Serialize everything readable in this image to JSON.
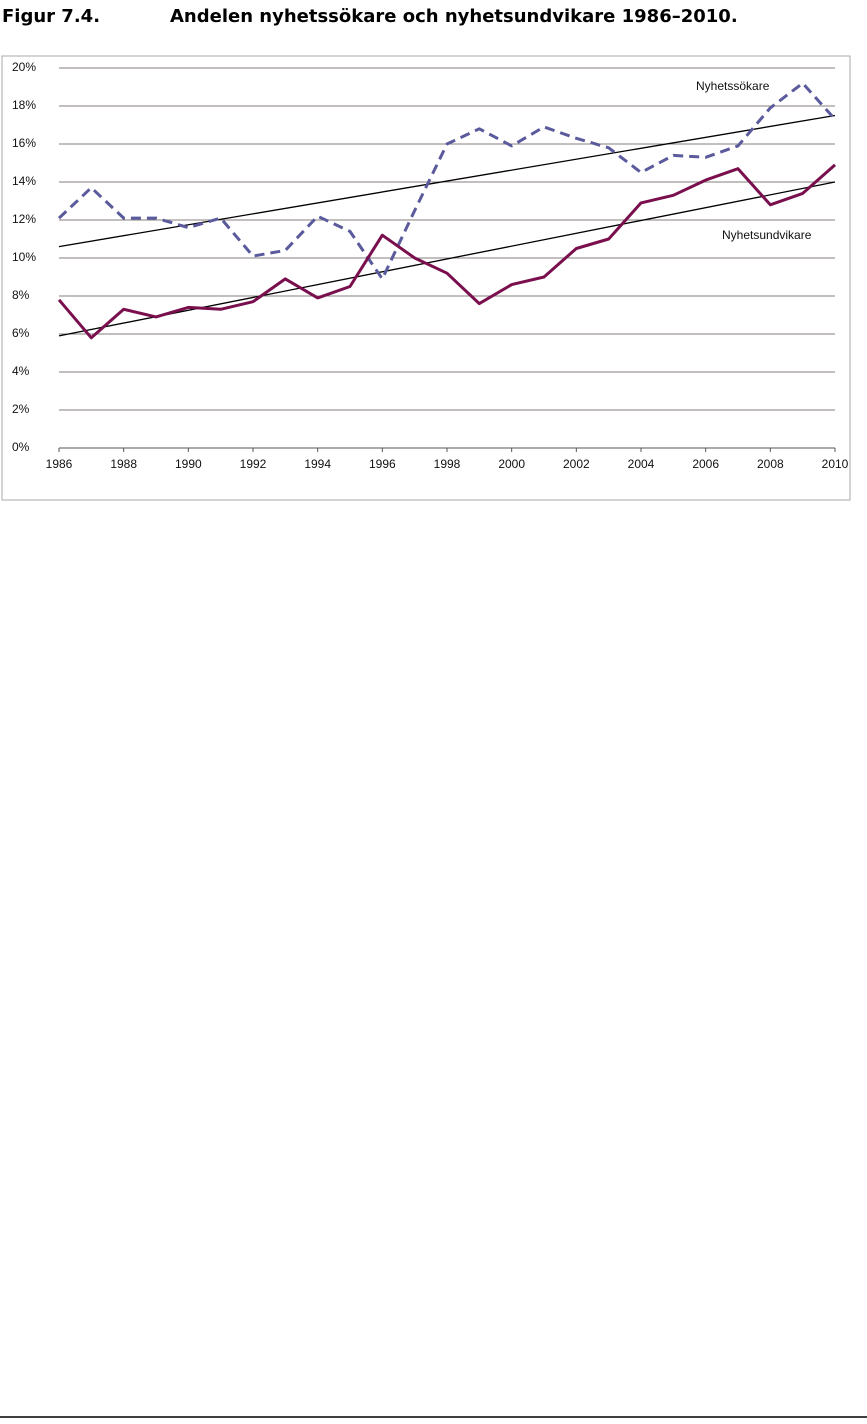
{
  "chart_data": {
    "type": "line",
    "figure_label": "Figur 7.4.",
    "title": "Andelen nyhetssökare och nyhetsundvikare 1986–2010.",
    "x": [
      1986,
      1987,
      1988,
      1989,
      1990,
      1991,
      1992,
      1993,
      1994,
      1995,
      1996,
      1997,
      1998,
      1999,
      2000,
      2001,
      2002,
      2003,
      2004,
      2005,
      2006,
      2007,
      2008,
      2009,
      2010
    ],
    "series": [
      {
        "name": "Nyhetssökare",
        "color": "#5a5a9c",
        "dashed": true,
        "values": [
          12.1,
          13.7,
          12.1,
          12.1,
          11.6,
          12.1,
          10.1,
          10.4,
          12.2,
          11.4,
          8.9,
          12.5,
          16.0,
          16.8,
          15.9,
          16.9,
          16.3,
          15.8,
          14.5,
          15.4,
          15.3,
          15.9,
          17.9,
          19.2,
          17.3
        ]
      },
      {
        "name": "Nyhetsundvikare",
        "color": "#7a0f4e",
        "dashed": false,
        "values": [
          7.8,
          5.8,
          7.3,
          6.9,
          7.4,
          7.3,
          7.7,
          8.9,
          7.9,
          8.5,
          11.2,
          10.0,
          9.2,
          7.6,
          8.6,
          9.0,
          10.5,
          11.0,
          12.9,
          13.3,
          14.1,
          14.7,
          12.8,
          13.4,
          14.9
        ]
      }
    ],
    "trendlines": [
      {
        "color": "#000000",
        "x": [
          1986,
          2010
        ],
        "values": [
          10.6,
          17.5
        ]
      },
      {
        "color": "#000000",
        "x": [
          1986,
          2010
        ],
        "values": [
          5.9,
          14.0
        ]
      }
    ],
    "xlim": [
      1986,
      2010
    ],
    "xticks": [
      1986,
      1988,
      1990,
      1992,
      1994,
      1996,
      1998,
      2000,
      2002,
      2004,
      2006,
      2008,
      2010
    ],
    "ylim": [
      0,
      20
    ],
    "yticks": [
      {
        "value": 0,
        "label": "0%"
      },
      {
        "value": 2,
        "label": "2%"
      },
      {
        "value": 4,
        "label": "4%"
      },
      {
        "value": 6,
        "label": "6%"
      },
      {
        "value": 8,
        "label": "8%"
      },
      {
        "value": 10,
        "label": "10%"
      },
      {
        "value": 12,
        "label": "12%"
      },
      {
        "value": 14,
        "label": "14%"
      },
      {
        "value": 16,
        "label": "16%"
      },
      {
        "value": 18,
        "label": "18%"
      },
      {
        "value": 20,
        "label": "20%"
      }
    ],
    "grid": true
  }
}
